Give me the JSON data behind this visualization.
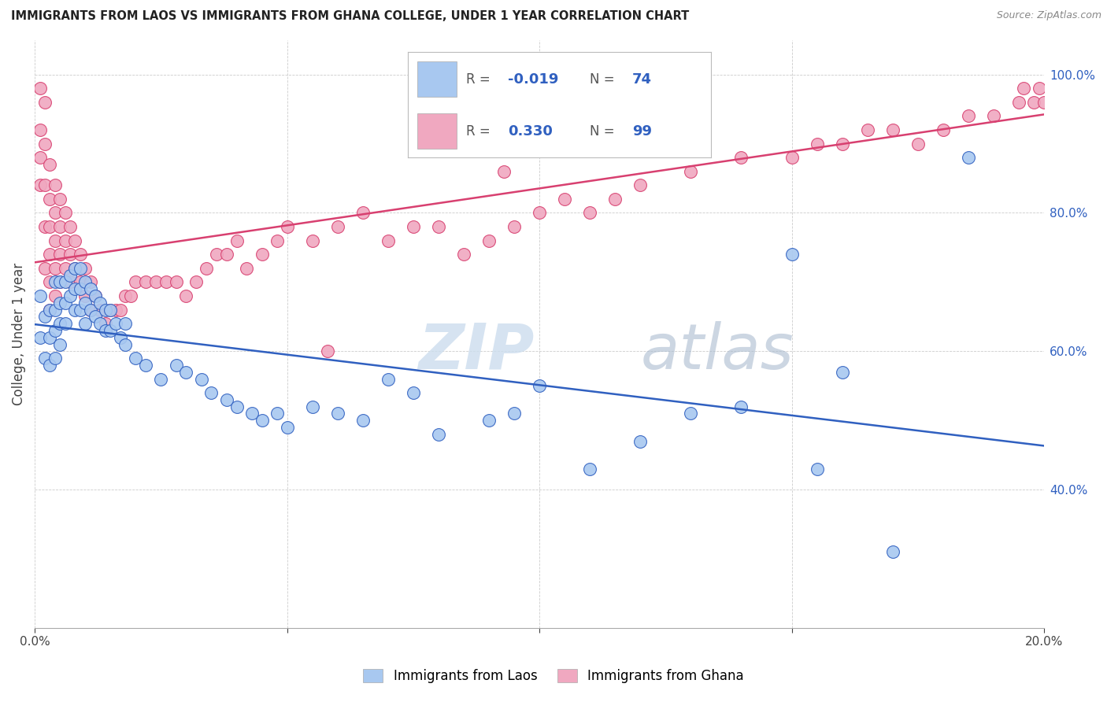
{
  "title": "IMMIGRANTS FROM LAOS VS IMMIGRANTS FROM GHANA COLLEGE, UNDER 1 YEAR CORRELATION CHART",
  "source": "Source: ZipAtlas.com",
  "ylabel": "College, Under 1 year",
  "x_min": 0.0,
  "x_max": 0.2,
  "y_min": 0.2,
  "y_max": 1.05,
  "y_ticks": [
    0.4,
    0.6,
    0.8,
    1.0
  ],
  "legend_label1": "Immigrants from Laos",
  "legend_label2": "Immigrants from Ghana",
  "R_laos": -0.019,
  "N_laos": 74,
  "R_ghana": 0.33,
  "N_ghana": 99,
  "color_laos": "#a8c8f0",
  "color_ghana": "#f0a8c0",
  "color_line_blue": "#3060c0",
  "color_line_pink": "#d84070",
  "color_text_blue": "#3060c0",
  "watermark_zip": "ZIP",
  "watermark_atlas": "atlas",
  "laos_x": [
    0.001,
    0.001,
    0.002,
    0.002,
    0.003,
    0.003,
    0.003,
    0.004,
    0.004,
    0.004,
    0.004,
    0.005,
    0.005,
    0.005,
    0.005,
    0.006,
    0.006,
    0.006,
    0.007,
    0.007,
    0.008,
    0.008,
    0.008,
    0.009,
    0.009,
    0.009,
    0.01,
    0.01,
    0.01,
    0.011,
    0.011,
    0.012,
    0.012,
    0.013,
    0.013,
    0.014,
    0.014,
    0.015,
    0.015,
    0.016,
    0.017,
    0.018,
    0.018,
    0.02,
    0.022,
    0.025,
    0.028,
    0.03,
    0.033,
    0.035,
    0.038,
    0.04,
    0.043,
    0.045,
    0.048,
    0.05,
    0.055,
    0.06,
    0.065,
    0.07,
    0.075,
    0.08,
    0.09,
    0.095,
    0.1,
    0.11,
    0.12,
    0.13,
    0.14,
    0.15,
    0.155,
    0.16,
    0.17,
    0.185
  ],
  "laos_y": [
    0.68,
    0.62,
    0.65,
    0.59,
    0.66,
    0.62,
    0.58,
    0.7,
    0.66,
    0.63,
    0.59,
    0.7,
    0.67,
    0.64,
    0.61,
    0.7,
    0.67,
    0.64,
    0.71,
    0.68,
    0.72,
    0.69,
    0.66,
    0.72,
    0.69,
    0.66,
    0.7,
    0.67,
    0.64,
    0.69,
    0.66,
    0.68,
    0.65,
    0.67,
    0.64,
    0.66,
    0.63,
    0.66,
    0.63,
    0.64,
    0.62,
    0.64,
    0.61,
    0.59,
    0.58,
    0.56,
    0.58,
    0.57,
    0.56,
    0.54,
    0.53,
    0.52,
    0.51,
    0.5,
    0.51,
    0.49,
    0.52,
    0.51,
    0.5,
    0.56,
    0.54,
    0.48,
    0.5,
    0.51,
    0.55,
    0.43,
    0.47,
    0.51,
    0.52,
    0.74,
    0.43,
    0.57,
    0.31,
    0.88
  ],
  "ghana_x": [
    0.001,
    0.001,
    0.001,
    0.001,
    0.002,
    0.002,
    0.002,
    0.002,
    0.002,
    0.003,
    0.003,
    0.003,
    0.003,
    0.003,
    0.003,
    0.004,
    0.004,
    0.004,
    0.004,
    0.004,
    0.005,
    0.005,
    0.005,
    0.005,
    0.006,
    0.006,
    0.006,
    0.007,
    0.007,
    0.007,
    0.008,
    0.008,
    0.009,
    0.009,
    0.01,
    0.01,
    0.011,
    0.011,
    0.012,
    0.013,
    0.014,
    0.015,
    0.016,
    0.017,
    0.018,
    0.019,
    0.02,
    0.022,
    0.024,
    0.026,
    0.028,
    0.03,
    0.032,
    0.034,
    0.036,
    0.038,
    0.04,
    0.042,
    0.045,
    0.048,
    0.05,
    0.055,
    0.058,
    0.06,
    0.065,
    0.07,
    0.075,
    0.08,
    0.085,
    0.09,
    0.093,
    0.095,
    0.1,
    0.105,
    0.11,
    0.115,
    0.12,
    0.13,
    0.14,
    0.15,
    0.155,
    0.16,
    0.165,
    0.17,
    0.175,
    0.18,
    0.185,
    0.19,
    0.195,
    0.196,
    0.198,
    0.199,
    0.2,
    0.202,
    0.203,
    0.204,
    0.205,
    0.207,
    0.21
  ],
  "ghana_y": [
    0.98,
    0.92,
    0.88,
    0.84,
    0.96,
    0.9,
    0.84,
    0.78,
    0.72,
    0.87,
    0.82,
    0.78,
    0.74,
    0.7,
    0.66,
    0.84,
    0.8,
    0.76,
    0.72,
    0.68,
    0.82,
    0.78,
    0.74,
    0.7,
    0.8,
    0.76,
    0.72,
    0.78,
    0.74,
    0.7,
    0.76,
    0.72,
    0.74,
    0.7,
    0.72,
    0.68,
    0.7,
    0.66,
    0.68,
    0.66,
    0.64,
    0.66,
    0.66,
    0.66,
    0.68,
    0.68,
    0.7,
    0.7,
    0.7,
    0.7,
    0.7,
    0.68,
    0.7,
    0.72,
    0.74,
    0.74,
    0.76,
    0.72,
    0.74,
    0.76,
    0.78,
    0.76,
    0.6,
    0.78,
    0.8,
    0.76,
    0.78,
    0.78,
    0.74,
    0.76,
    0.86,
    0.78,
    0.8,
    0.82,
    0.8,
    0.82,
    0.84,
    0.86,
    0.88,
    0.88,
    0.9,
    0.9,
    0.92,
    0.92,
    0.9,
    0.92,
    0.94,
    0.94,
    0.96,
    0.98,
    0.96,
    0.98,
    0.96,
    0.98,
    0.98,
    1.0,
    0.98,
    1.0,
    0.98
  ]
}
